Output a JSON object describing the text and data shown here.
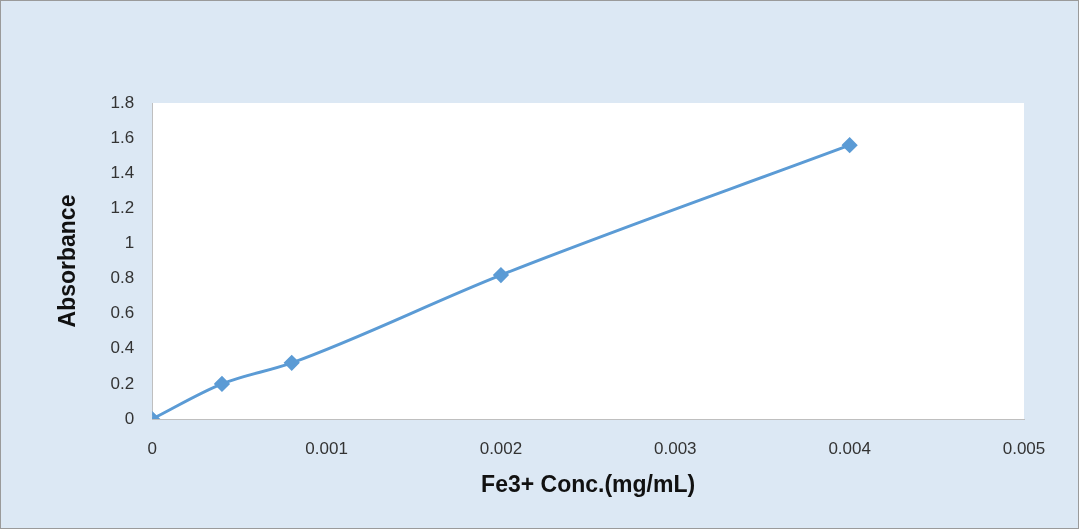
{
  "chart_data": {
    "type": "line",
    "xlabel": "Fe3+ Conc.(mg/mL)",
    "ylabel": "Absorbance",
    "x": [
      0,
      0.0004,
      0.0008,
      0.002,
      0.004
    ],
    "series": [
      {
        "color": "#5b9bd5",
        "values": [
          0,
          0.2,
          0.32,
          0.82,
          1.56
        ]
      }
    ],
    "xlim": [
      0,
      0.005
    ],
    "xticks": [
      0,
      0.001,
      0.002,
      0.003,
      0.004,
      0.005
    ],
    "ylim": [
      0,
      1.8
    ],
    "yticks": [
      0,
      0.2,
      0.4,
      0.6,
      0.8,
      1,
      1.2,
      1.4,
      1.6,
      1.8
    ],
    "grid": false,
    "legend": false,
    "marker": "diamond",
    "line_style": "solid"
  }
}
